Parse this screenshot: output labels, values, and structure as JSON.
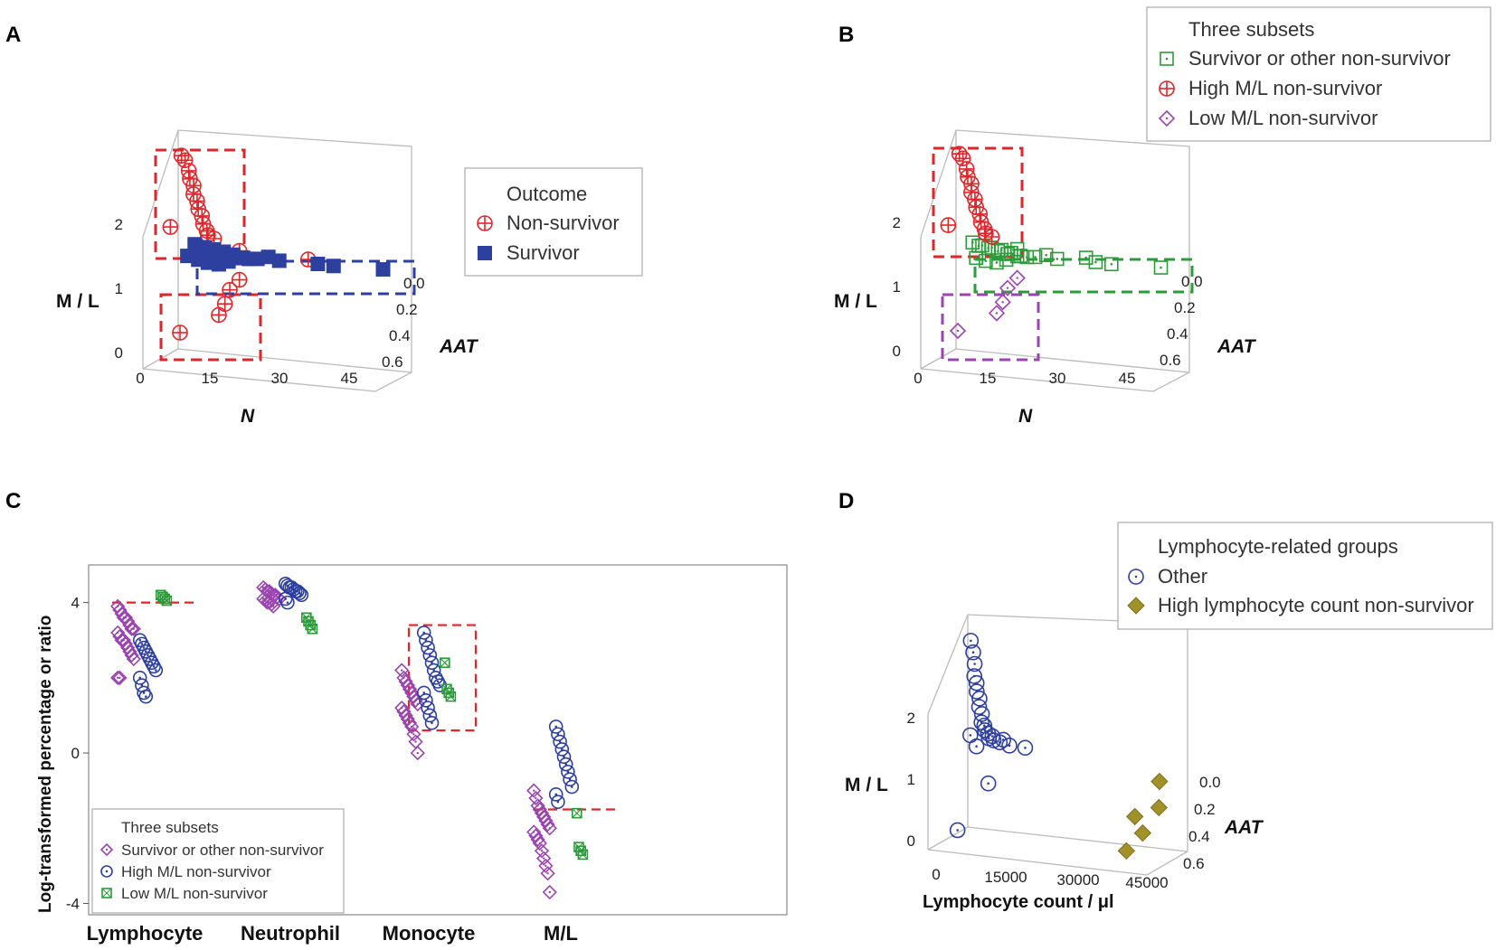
{
  "chart_data": [
    {
      "panel": "A",
      "type": "scatter",
      "title": "",
      "xlabel": "N",
      "ylabel": "M / L",
      "zlabel": "AAT",
      "x_ticks": [
        "0",
        "15",
        "30",
        "45"
      ],
      "y_ticks": [
        "0",
        "1",
        "2"
      ],
      "z_ticks": [
        "0.0",
        "0.2",
        "0.4",
        "0.6"
      ],
      "xlim": [
        0,
        45
      ],
      "ylim": [
        0,
        2.5
      ],
      "zlim": [
        0,
        0.6
      ],
      "legend": {
        "title": "Outcome",
        "entries": [
          "Non-survivor",
          "Survivor"
        ],
        "placement": "right"
      },
      "series": [
        {
          "name": "Non-survivor",
          "color": "#e0262b",
          "marker": "circle-plus",
          "points": [
            {
              "x": 2,
              "y": 2.55,
              "z": 0.1
            },
            {
              "x": 3,
              "y": 2.5,
              "z": 0.12
            },
            {
              "x": 3.5,
              "y": 2.35,
              "z": 0.1
            },
            {
              "x": 4,
              "y": 2.25,
              "z": 0.12
            },
            {
              "x": 4.5,
              "y": 2.15,
              "z": 0.1
            },
            {
              "x": 5,
              "y": 2.05,
              "z": 0.14
            },
            {
              "x": 5.5,
              "y": 1.95,
              "z": 0.12
            },
            {
              "x": 6,
              "y": 1.85,
              "z": 0.14
            },
            {
              "x": 6.5,
              "y": 1.75,
              "z": 0.12
            },
            {
              "x": 7,
              "y": 1.65,
              "z": 0.14
            },
            {
              "x": 7.5,
              "y": 1.55,
              "z": 0.12
            },
            {
              "x": 8,
              "y": 1.5,
              "z": 0.14
            },
            {
              "x": 9,
              "y": 1.45,
              "z": 0.12
            },
            {
              "x": 1,
              "y": 1.6,
              "z": 0.2
            },
            {
              "x": 14,
              "y": 1.3,
              "z": 0.1
            },
            {
              "x": 28,
              "y": 1.25,
              "z": 0.08
            },
            {
              "x": 14,
              "y": 0.9,
              "z": 0.1
            },
            {
              "x": 12,
              "y": 0.75,
              "z": 0.1
            },
            {
              "x": 11,
              "y": 0.55,
              "z": 0.1
            },
            {
              "x": 10,
              "y": 0.4,
              "z": 0.12
            },
            {
              "x": 3,
              "y": 0.15,
              "z": 0.2
            }
          ]
        },
        {
          "name": "Survivor",
          "color": "#2d3f9f",
          "marker": "square",
          "points": [
            {
              "x": 5,
              "y": 1.35,
              "z": 0.12
            },
            {
              "x": 6,
              "y": 1.3,
              "z": 0.1
            },
            {
              "x": 7,
              "y": 1.32,
              "z": 0.12
            },
            {
              "x": 8,
              "y": 1.28,
              "z": 0.1
            },
            {
              "x": 9,
              "y": 1.3,
              "z": 0.12
            },
            {
              "x": 10,
              "y": 1.25,
              "z": 0.1
            },
            {
              "x": 11,
              "y": 1.28,
              "z": 0.12
            },
            {
              "x": 12,
              "y": 1.22,
              "z": 0.1
            },
            {
              "x": 13,
              "y": 1.25,
              "z": 0.12
            },
            {
              "x": 14,
              "y": 1.2,
              "z": 0.1
            },
            {
              "x": 15,
              "y": 1.22,
              "z": 0.12
            },
            {
              "x": 16,
              "y": 1.2,
              "z": 0.1
            },
            {
              "x": 18,
              "y": 1.22,
              "z": 0.12
            },
            {
              "x": 20,
              "y": 1.25,
              "z": 0.1
            },
            {
              "x": 22,
              "y": 1.2,
              "z": 0.08
            },
            {
              "x": 30,
              "y": 1.2,
              "z": 0.08
            },
            {
              "x": 33,
              "y": 1.18,
              "z": 0.06
            },
            {
              "x": 43,
              "y": 1.18,
              "z": 0.04
            },
            {
              "x": 6,
              "y": 1.15,
              "z": 0.14
            },
            {
              "x": 8,
              "y": 1.12,
              "z": 0.14
            },
            {
              "x": 10,
              "y": 1.1,
              "z": 0.12
            },
            {
              "x": 12,
              "y": 1.15,
              "z": 0.12
            },
            {
              "x": 4,
              "y": 1.2,
              "z": 0.16
            }
          ]
        }
      ]
    },
    {
      "panel": "B",
      "type": "scatter",
      "title": "",
      "xlabel": "N",
      "ylabel": "M / L",
      "zlabel": "AAT",
      "x_ticks": [
        "0",
        "15",
        "30",
        "45"
      ],
      "y_ticks": [
        "0",
        "1",
        "2"
      ],
      "z_ticks": [
        "0.0",
        "0.2",
        "0.4",
        "0.6"
      ],
      "xlim": [
        0,
        45
      ],
      "ylim": [
        0,
        2.5
      ],
      "zlim": [
        0,
        0.6
      ],
      "legend": {
        "title": "Three subsets",
        "entries": [
          "Survivor or other non-survivor",
          "High M/L non-survivor",
          "Low M/L non-survivor"
        ],
        "placement": "top-right"
      },
      "series": [
        {
          "name": "Survivor or other non-survivor",
          "color": "#2a9d3a",
          "marker": "square-dot",
          "points": [
            {
              "x": 5,
              "y": 1.35,
              "z": 0.12
            },
            {
              "x": 6,
              "y": 1.3,
              "z": 0.1
            },
            {
              "x": 7,
              "y": 1.32,
              "z": 0.12
            },
            {
              "x": 8,
              "y": 1.28,
              "z": 0.1
            },
            {
              "x": 9,
              "y": 1.3,
              "z": 0.12
            },
            {
              "x": 10,
              "y": 1.25,
              "z": 0.1
            },
            {
              "x": 11,
              "y": 1.28,
              "z": 0.12
            },
            {
              "x": 12,
              "y": 1.22,
              "z": 0.1
            },
            {
              "x": 13,
              "y": 1.25,
              "z": 0.12
            },
            {
              "x": 14,
              "y": 1.2,
              "z": 0.1
            },
            {
              "x": 15,
              "y": 1.22,
              "z": 0.12
            },
            {
              "x": 16,
              "y": 1.2,
              "z": 0.1
            },
            {
              "x": 18,
              "y": 1.22,
              "z": 0.12
            },
            {
              "x": 20,
              "y": 1.25,
              "z": 0.1
            },
            {
              "x": 22,
              "y": 1.2,
              "z": 0.08
            },
            {
              "x": 30,
              "y": 1.2,
              "z": 0.08
            },
            {
              "x": 33,
              "y": 1.18,
              "z": 0.06
            },
            {
              "x": 43,
              "y": 1.18,
              "z": 0.04
            },
            {
              "x": 6,
              "y": 1.15,
              "z": 0.14
            },
            {
              "x": 8,
              "y": 1.12,
              "z": 0.14
            },
            {
              "x": 10,
              "y": 1.1,
              "z": 0.12
            },
            {
              "x": 12,
              "y": 1.15,
              "z": 0.12
            },
            {
              "x": 14,
              "y": 1.3,
              "z": 0.1
            },
            {
              "x": 28,
              "y": 1.25,
              "z": 0.08
            }
          ]
        },
        {
          "name": "High M/L non-survivor",
          "color": "#e0262b",
          "marker": "circle-plus",
          "points": [
            {
              "x": 2,
              "y": 2.55,
              "z": 0.1
            },
            {
              "x": 3,
              "y": 2.5,
              "z": 0.12
            },
            {
              "x": 3.5,
              "y": 2.35,
              "z": 0.1
            },
            {
              "x": 4,
              "y": 2.25,
              "z": 0.12
            },
            {
              "x": 4.5,
              "y": 2.15,
              "z": 0.1
            },
            {
              "x": 5,
              "y": 2.05,
              "z": 0.14
            },
            {
              "x": 5.5,
              "y": 1.95,
              "z": 0.12
            },
            {
              "x": 6,
              "y": 1.85,
              "z": 0.14
            },
            {
              "x": 6.5,
              "y": 1.75,
              "z": 0.12
            },
            {
              "x": 7,
              "y": 1.65,
              "z": 0.14
            },
            {
              "x": 7.5,
              "y": 1.55,
              "z": 0.12
            },
            {
              "x": 8,
              "y": 1.5,
              "z": 0.14
            },
            {
              "x": 9,
              "y": 1.45,
              "z": 0.12
            },
            {
              "x": 1,
              "y": 1.6,
              "z": 0.2
            }
          ]
        },
        {
          "name": "Low M/L non-survivor",
          "color": "#9b44b0",
          "marker": "diamond-dot",
          "points": [
            {
              "x": 14,
              "y": 0.9,
              "z": 0.1
            },
            {
              "x": 12,
              "y": 0.75,
              "z": 0.1
            },
            {
              "x": 11,
              "y": 0.55,
              "z": 0.1
            },
            {
              "x": 10,
              "y": 0.4,
              "z": 0.12
            },
            {
              "x": 3,
              "y": 0.15,
              "z": 0.2
            }
          ]
        }
      ]
    },
    {
      "panel": "C",
      "type": "scatter",
      "title": "",
      "xlabel": "",
      "ylabel": "Log-transformed percentage or ratio",
      "categories": [
        "Lymphocyte",
        "Neutrophil",
        "Monocyte",
        "M/L"
      ],
      "y_ticks": [
        "-4",
        "0",
        "4"
      ],
      "ylim": [
        -4.3,
        5
      ],
      "legend": {
        "title": "Three subsets",
        "entries": [
          "Survivor or other non-survivor",
          "High M/L non-survivor",
          "Low M/L non-survivor"
        ],
        "placement": "bottom-left"
      },
      "series": [
        {
          "name": "Survivor or other non-survivor",
          "color": "#9b44b0",
          "marker": "diamond-dot",
          "offset": -0.3,
          "values": [
            [
              3.9,
              3.8,
              3.7,
              3.6,
              3.6,
              3.5,
              3.4,
              3.3,
              3.3,
              3.2,
              3.1,
              3.0,
              3.0,
              2.9,
              2.8,
              2.7,
              2.6,
              2.5,
              2.0,
              2.0
            ],
            [
              4.4,
              4.35,
              4.3,
              4.3,
              4.25,
              4.2,
              4.2,
              4.15,
              4.1,
              4.1,
              4.05,
              4.0,
              4.0,
              3.95,
              3.9
            ],
            [
              2.2,
              2.0,
              1.9,
              1.8,
              1.7,
              1.6,
              1.5,
              1.4,
              1.3,
              1.2,
              1.1,
              1.0,
              0.9,
              0.8,
              0.7,
              0.5,
              0.3,
              0.0
            ],
            [
              -1.0,
              -1.2,
              -1.4,
              -1.5,
              -1.6,
              -1.7,
              -1.8,
              -1.9,
              -2.0,
              -2.1,
              -2.2,
              -2.3,
              -2.4,
              -2.6,
              -2.8,
              -3.0,
              -3.2,
              -3.7
            ]
          ]
        },
        {
          "name": "High M/L non-survivor",
          "color": "#2d3f9f",
          "marker": "circle-dot",
          "offset": 0.05,
          "values": [
            [
              3.0,
              2.9,
              2.8,
              2.7,
              2.6,
              2.5,
              2.4,
              2.3,
              2.2,
              2.0,
              1.8,
              1.6,
              1.5
            ],
            [
              4.5,
              4.45,
              4.4,
              4.4,
              4.35,
              4.3,
              4.3,
              4.25,
              4.2,
              4.1,
              4.0
            ],
            [
              3.2,
              3.0,
              2.8,
              2.6,
              2.4,
              2.2,
              2.0,
              1.9,
              1.8,
              1.6,
              1.4,
              1.2,
              1.0,
              0.8
            ],
            [
              0.7,
              0.5,
              0.3,
              0.1,
              -0.1,
              -0.3,
              -0.5,
              -0.7,
              -0.9,
              -1.1,
              -1.3
            ]
          ]
        },
        {
          "name": "Low M/L non-survivor",
          "color": "#2a9d3a",
          "marker": "square-x",
          "offset": 0.38,
          "values": [
            [
              4.2,
              4.15,
              4.1,
              4.05
            ],
            [
              3.6,
              3.5,
              3.4,
              3.3
            ],
            [
              2.4,
              1.7,
              1.6,
              1.5
            ],
            [
              -1.6,
              -2.5,
              -2.6,
              -2.7
            ]
          ]
        }
      ],
      "reference_lines": [
        {
          "category": "Lymphocyte",
          "y": 4.0,
          "style": "dashed",
          "color": "#e0262b"
        },
        {
          "category": "M/L",
          "y": -1.5,
          "style": "dashed",
          "color": "#e0262b"
        }
      ],
      "highlight_box": {
        "category": "Monocyte",
        "ymin": 0.6,
        "ymax": 3.4,
        "color": "#e0262b"
      }
    },
    {
      "panel": "D",
      "type": "scatter",
      "title": "",
      "xlabel": "Lymphocyte count / μl",
      "ylabel": "M / L",
      "zlabel": "AAT",
      "x_ticks": [
        "0",
        "15000",
        "30000",
        "45000"
      ],
      "y_ticks": [
        "0",
        "1",
        "2"
      ],
      "z_ticks": [
        "0.0",
        "0.2",
        "0.4",
        "0.6"
      ],
      "xlim": [
        0,
        45000
      ],
      "ylim": [
        0,
        2.5
      ],
      "zlim": [
        0,
        0.6
      ],
      "legend": {
        "title": "Lymphocyte-related groups",
        "entries": [
          "Other",
          "High lymphocyte count non-survivor"
        ],
        "placement": "top-right"
      },
      "series": [
        {
          "name": "Other",
          "color": "#2d3f9f",
          "marker": "circle-dot",
          "points": [
            {
              "x": 2000,
              "y": 2.55,
              "z": 0.1
            },
            {
              "x": 2500,
              "y": 2.4,
              "z": 0.1
            },
            {
              "x": 2800,
              "y": 2.25,
              "z": 0.1
            },
            {
              "x": 3000,
              "y": 2.1,
              "z": 0.12
            },
            {
              "x": 3200,
              "y": 2.0,
              "z": 0.1
            },
            {
              "x": 3500,
              "y": 1.9,
              "z": 0.12
            },
            {
              "x": 3800,
              "y": 1.8,
              "z": 0.1
            },
            {
              "x": 4000,
              "y": 1.7,
              "z": 0.12
            },
            {
              "x": 4300,
              "y": 1.6,
              "z": 0.1
            },
            {
              "x": 4500,
              "y": 1.5,
              "z": 0.12
            },
            {
              "x": 4800,
              "y": 1.45,
              "z": 0.1
            },
            {
              "x": 5200,
              "y": 1.4,
              "z": 0.12
            },
            {
              "x": 5600,
              "y": 1.35,
              "z": 0.1
            },
            {
              "x": 6000,
              "y": 1.3,
              "z": 0.12
            },
            {
              "x": 6500,
              "y": 1.32,
              "z": 0.1
            },
            {
              "x": 7000,
              "y": 1.28,
              "z": 0.12
            },
            {
              "x": 8000,
              "y": 1.25,
              "z": 0.1
            },
            {
              "x": 9000,
              "y": 1.3,
              "z": 0.12
            },
            {
              "x": 10000,
              "y": 1.22,
              "z": 0.1
            },
            {
              "x": 13000,
              "y": 1.2,
              "z": 0.08
            },
            {
              "x": 3000,
              "y": 1.35,
              "z": 0.18
            },
            {
              "x": 4000,
              "y": 1.2,
              "z": 0.16
            },
            {
              "x": 7000,
              "y": 0.75,
              "z": 0.2
            },
            {
              "x": 2000,
              "y": 0.15,
              "z": 0.3
            }
          ]
        },
        {
          "name": "High lymphocyte count non-survivor",
          "color": "#a09128",
          "marker": "diamond-filled",
          "points": [
            {
              "x": 40000,
              "y": 0.9,
              "z": 0.02
            },
            {
              "x": 41000,
              "y": 0.6,
              "z": 0.1
            },
            {
              "x": 36000,
              "y": 0.45,
              "z": 0.1
            },
            {
              "x": 39000,
              "y": 0.3,
              "z": 0.2
            },
            {
              "x": 37000,
              "y": 0.1,
              "z": 0.3
            }
          ]
        }
      ]
    }
  ]
}
